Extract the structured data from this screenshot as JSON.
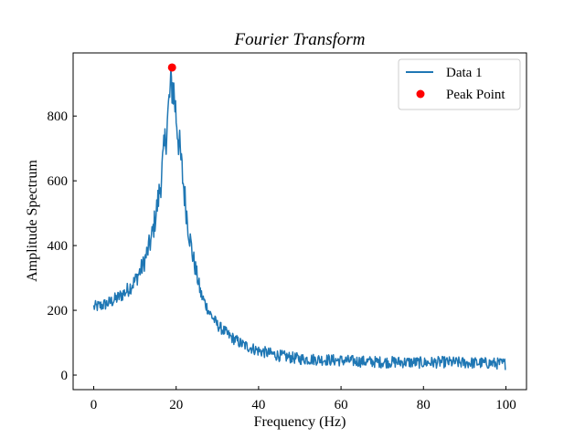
{
  "chart_data": {
    "type": "line",
    "title": "Fourier Transform",
    "xlabel": "Frequency (Hz)",
    "ylabel": "Amplitude Spectrum",
    "xlim": [
      -5,
      105
    ],
    "ylim": [
      -45,
      995
    ],
    "xticks": [
      0,
      20,
      40,
      60,
      80,
      100
    ],
    "yticks": [
      0,
      200,
      400,
      600,
      800
    ],
    "xtick_labels": [
      "0",
      "20",
      "40",
      "60",
      "80",
      "100"
    ],
    "ytick_labels": [
      "0",
      "200",
      "400",
      "600",
      "800"
    ],
    "grid": false,
    "legend": {
      "location": "upper right",
      "entries": [
        "Data 1",
        "Peak Point"
      ]
    },
    "series": [
      {
        "name": "Data 1",
        "kind": "line",
        "color": "#1f77b4",
        "noisy": true,
        "x": [
          0,
          2,
          4,
          6,
          8,
          10,
          12,
          14,
          15,
          16,
          17,
          18,
          18.5,
          19,
          19.5,
          20,
          21,
          22,
          23,
          24,
          25,
          26,
          28,
          30,
          33,
          36,
          40,
          45,
          50,
          55,
          60,
          65,
          70,
          75,
          80,
          85,
          90,
          95,
          100
        ],
        "y": [
          210,
          215,
          225,
          240,
          260,
          290,
          340,
          420,
          490,
          570,
          680,
          800,
          870,
          900,
          870,
          800,
          680,
          560,
          450,
          370,
          310,
          250,
          195,
          155,
          120,
          95,
          75,
          60,
          50,
          48,
          45,
          42,
          40,
          40,
          38,
          40,
          38,
          37,
          35
        ]
      },
      {
        "name": "Peak Point",
        "kind": "point",
        "color": "#ff0000",
        "x": [
          19
        ],
        "y": [
          950
        ]
      }
    ]
  }
}
